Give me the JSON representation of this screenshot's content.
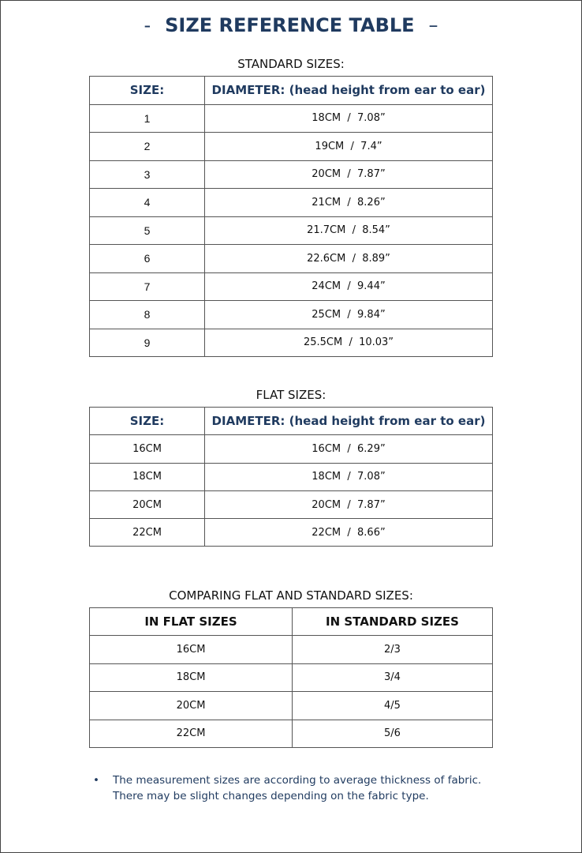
{
  "title": {
    "prefix": "-",
    "text": "SIZE REFERENCE TABLE",
    "suffix": "–"
  },
  "standard": {
    "caption": "STANDARD SIZES:",
    "headers": [
      "SIZE:",
      "DIAMETER: (head height from ear to ear)"
    ],
    "rows": [
      [
        "1",
        "18CM  /  7.08”"
      ],
      [
        "2",
        "19CM  /  7.4”"
      ],
      [
        "3",
        "20CM  /  7.87”"
      ],
      [
        "4",
        "21CM  /  8.26”"
      ],
      [
        "5",
        "21.7CM  /  8.54”"
      ],
      [
        "6",
        "22.6CM  /  8.89”"
      ],
      [
        "7",
        "24CM  /  9.44”"
      ],
      [
        "8",
        "25CM  /  9.84”"
      ],
      [
        "9",
        "25.5CM  /  10.03”"
      ]
    ]
  },
  "flat": {
    "caption": "FLAT SIZES:",
    "headers": [
      "SIZE:",
      "DIAMETER: (head height from ear to ear)"
    ],
    "rows": [
      [
        "16CM",
        "16CM  /  6.29”"
      ],
      [
        "18CM",
        "18CM  /  7.08”"
      ],
      [
        "20CM",
        "20CM  /  7.87”"
      ],
      [
        "22CM",
        "22CM  /  8.66”"
      ]
    ]
  },
  "compare": {
    "caption": "COMPARING FLAT AND STANDARD SIZES:",
    "headers": [
      "IN FLAT SIZES",
      "IN STANDARD SIZES"
    ],
    "rows": [
      [
        "16CM",
        "2/3"
      ],
      [
        "18CM",
        "3/4"
      ],
      [
        "20CM",
        "4/5"
      ],
      [
        "22CM",
        "5/6"
      ]
    ]
  },
  "note": {
    "bullet": "•",
    "lines": [
      "The measurement sizes are according to average thickness of fabric.",
      "There may be slight changes depending on the fabric type."
    ]
  },
  "colors": {
    "heading": "#1f3a5f",
    "border": "#555555"
  }
}
